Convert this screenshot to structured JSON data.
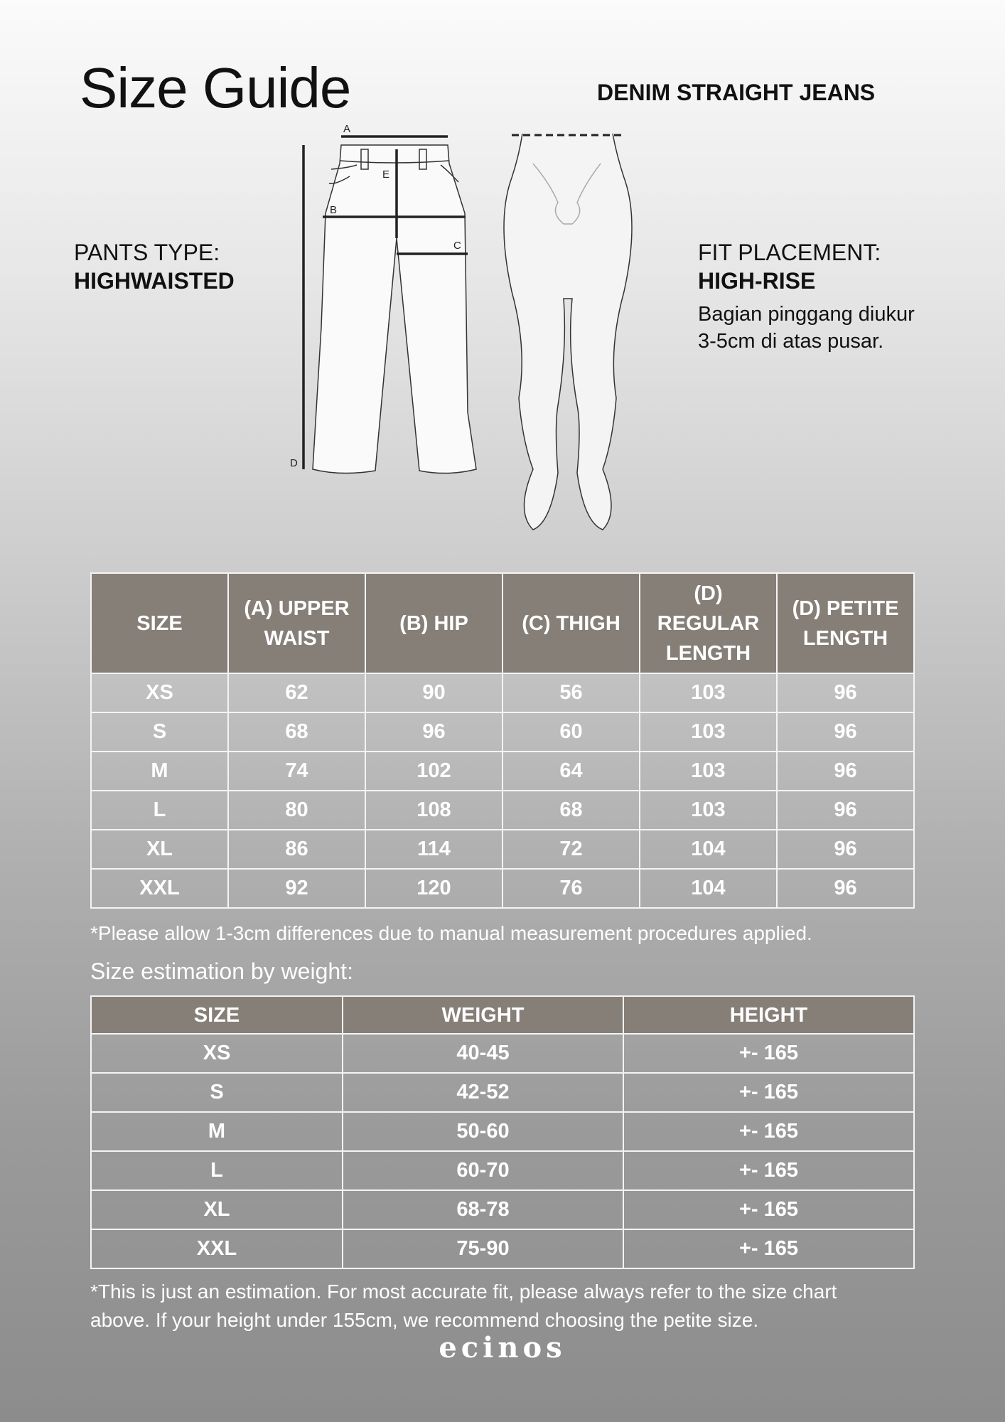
{
  "header": {
    "title": "Size Guide",
    "product": "DENIM STRAIGHT JEANS"
  },
  "pants_type": {
    "label": "PANTS TYPE:",
    "value": "HIGHWAISTED"
  },
  "fit_placement": {
    "label": "FIT PLACEMENT:",
    "value": "HIGH-RISE",
    "desc_line1": "Bagian pinggang diukur",
    "desc_line2": "3-5cm di atas pusar."
  },
  "diagram": {
    "labels": [
      "A",
      "B",
      "C",
      "D",
      "E"
    ]
  },
  "size_chart": {
    "headers": [
      "SIZE",
      "(A) UPPER WAIST",
      "(B) HIP",
      "(C) THIGH",
      "(D) REGULAR LENGTH",
      "(D) PETITE LENGTH"
    ],
    "rows": [
      [
        "XS",
        "62",
        "90",
        "56",
        "103",
        "96"
      ],
      [
        "S",
        "68",
        "96",
        "60",
        "103",
        "96"
      ],
      [
        "M",
        "74",
        "102",
        "64",
        "103",
        "96"
      ],
      [
        "L",
        "80",
        "108",
        "68",
        "103",
        "96"
      ],
      [
        "XL",
        "86",
        "114",
        "72",
        "104",
        "96"
      ],
      [
        "XXL",
        "92",
        "120",
        "76",
        "104",
        "96"
      ]
    ],
    "note": "*Please allow 1-3cm differences due to manual measurement procedures applied."
  },
  "weight_chart": {
    "title": "Size estimation by weight:",
    "headers": [
      "SIZE",
      "WEIGHT",
      "HEIGHT"
    ],
    "rows": [
      [
        "XS",
        "40-45",
        "+- 165"
      ],
      [
        "S",
        "42-52",
        "+- 165"
      ],
      [
        "M",
        "50-60",
        "+- 165"
      ],
      [
        "L",
        "60-70",
        "+- 165"
      ],
      [
        "XL",
        "68-78",
        "+- 165"
      ],
      [
        "XXL",
        "75-90",
        "+- 165"
      ]
    ],
    "note_line1": "*This is just an estimation. For most accurate fit, please always refer to the size chart",
    "note_line2": "above. If your height under 155cm, we recommend choosing the petite size."
  },
  "brand": "ecinos",
  "colors": {
    "header_bg": "#867f77",
    "text_light": "#ffffff"
  }
}
